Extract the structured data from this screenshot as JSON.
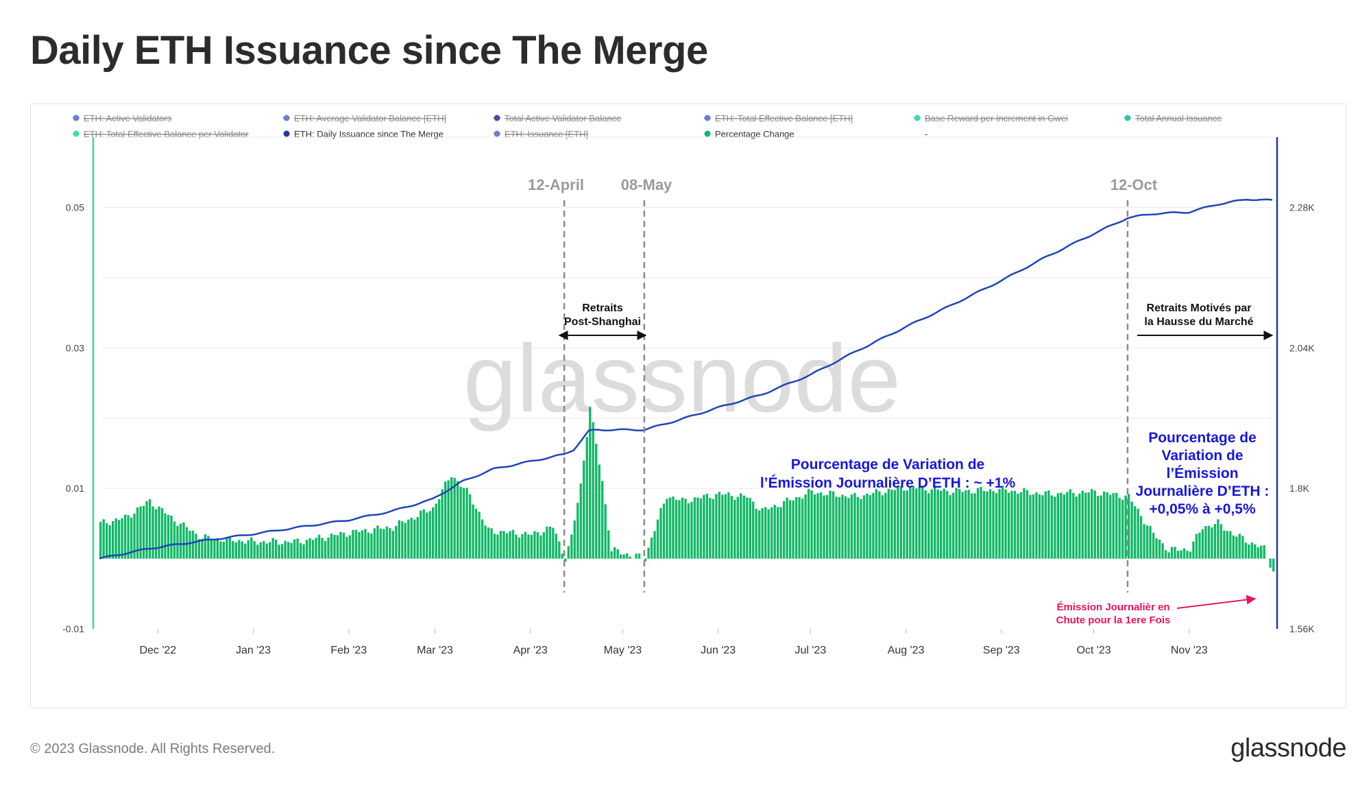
{
  "title": "Daily ETH Issuance since The Merge",
  "footer": {
    "copyright": "© 2023 Glassnode. All Rights Reserved.",
    "logo": "glassnode"
  },
  "watermark": "glassnode",
  "colors": {
    "issuance_line": "#1e45b8",
    "pct_bars": "#12b866",
    "left_axis": "#3cd4a8",
    "right_axis": "#1a3aa0",
    "vline": "#8a8a8a",
    "blue_text": "#1616e0",
    "pink_text": "#e8145a",
    "grid": "#e6e6e6"
  },
  "legend": [
    {
      "label": "ETH: Active Validators",
      "color": "#6a7fd8",
      "struck": true
    },
    {
      "label": "ETH: Average Validator Balance [ETH]",
      "color": "#6a7fd8",
      "struck": true
    },
    {
      "label": "Total Active Validator Balance",
      "color": "#4a4ab0",
      "struck": true
    },
    {
      "label": "ETH: Total Effective Balance [ETH]",
      "color": "#6a7fd8",
      "struck": true
    },
    {
      "label": "Base Reward per Increment in Gwei",
      "color": "#3ce0a8",
      "struck": true
    },
    {
      "label": "Total Annual Issuance",
      "color": "#36c0b0",
      "struck": true
    },
    {
      "label": "ETH: Total Effective Balance per Validator",
      "color": "#3ce0a8",
      "struck": true
    },
    {
      "label": "ETH: Daily Issuance since The Merge",
      "color": "#1e3aa0",
      "struck": false
    },
    {
      "label": "ETH: Issuance [ETH]",
      "color": "#6a7fd8",
      "struck": true
    },
    {
      "label": "Percentage Change",
      "color": "#12b866",
      "struck": false
    },
    {
      "label": "-",
      "color": "",
      "struck": false
    }
  ],
  "annotations": {
    "april": "12-April",
    "may": "08-May",
    "oct": "12-Oct",
    "shanghai": [
      "Retraits",
      "Post-Shanghai"
    ],
    "market": [
      "Retraits Motivés par",
      "la Hausse du Marché"
    ],
    "pct_main": [
      "Pourcentage de Variation de",
      "l’Émission Journalière D’ETH : ~ +1%"
    ],
    "pct_right": [
      "Pourcentage de",
      "Variation de",
      "l’Émission",
      "Journalière D’ETH :",
      "+0,05% à +0,5%"
    ],
    "fall": [
      "Émission Journalièr en",
      "Chute pour la 1ere Fois"
    ]
  },
  "chart_data": {
    "type": "line+bar",
    "title": "Daily ETH Issuance since The Merge",
    "x_ticks": [
      "Dec '22",
      "Jan '23",
      "Feb '23",
      "Mar '23",
      "Apr '23",
      "May '23",
      "Jun '23",
      "Jul '23",
      "Aug '23",
      "Sep '23",
      "Oct '23",
      "Nov '23"
    ],
    "x_range": [
      "2022-11-12",
      "2023-11-28"
    ],
    "left_axis": {
      "ticks": [
        "0.05",
        "0.03",
        "0.01",
        "-0.01"
      ],
      "range": [
        -0.01,
        0.06
      ]
    },
    "right_axis": {
      "ticks": [
        "2.28K",
        "2.04K",
        "1.8K",
        "1.56K"
      ],
      "range": [
        1560,
        2400
      ]
    },
    "vertical_markers": [
      "2023-04-12",
      "2023-05-08",
      "2023-10-12"
    ],
    "series": [
      {
        "name": "ETH: Daily Issuance since The Merge",
        "axis": "right",
        "kind": "line",
        "points": [
          [
            "2022-11-12",
            1680
          ],
          [
            "2022-11-28",
            1697
          ],
          [
            "2022-12-15",
            1710
          ],
          [
            "2023-01-01",
            1722
          ],
          [
            "2023-01-15",
            1733
          ],
          [
            "2023-02-01",
            1746
          ],
          [
            "2023-02-15",
            1761
          ],
          [
            "2023-02-28",
            1781
          ],
          [
            "2023-03-10",
            1812
          ],
          [
            "2023-03-20",
            1833
          ],
          [
            "2023-04-01",
            1846
          ],
          [
            "2023-04-10",
            1856
          ],
          [
            "2023-04-12",
            1858
          ],
          [
            "2023-04-15",
            1866
          ],
          [
            "2023-04-20",
            1898
          ],
          [
            "2023-04-23",
            1900
          ],
          [
            "2023-05-08",
            1900
          ],
          [
            "2023-05-20",
            1918
          ],
          [
            "2023-06-01",
            1938
          ],
          [
            "2023-06-15",
            1960
          ],
          [
            "2023-07-01",
            1994
          ],
          [
            "2023-07-15",
            2032
          ],
          [
            "2023-08-01",
            2076
          ],
          [
            "2023-08-15",
            2111
          ],
          [
            "2023-09-01",
            2155
          ],
          [
            "2023-09-15",
            2194
          ],
          [
            "2023-10-01",
            2235
          ],
          [
            "2023-10-12",
            2262
          ],
          [
            "2023-10-20",
            2269
          ],
          [
            "2023-11-01",
            2272
          ],
          [
            "2023-11-10",
            2285
          ],
          [
            "2023-11-20",
            2294
          ],
          [
            "2023-11-28",
            2292
          ]
        ]
      },
      {
        "name": "Percentage Change",
        "axis": "left",
        "kind": "bar",
        "points": [
          [
            "2022-11-12",
            0.005
          ],
          [
            "2022-11-20",
            0.0058
          ],
          [
            "2022-11-28",
            0.0082
          ],
          [
            "2022-12-06",
            0.0055
          ],
          [
            "2022-12-15",
            0.003
          ],
          [
            "2023-01-01",
            0.0024
          ],
          [
            "2023-01-15",
            0.0024
          ],
          [
            "2023-02-01",
            0.0037
          ],
          [
            "2023-02-15",
            0.0045
          ],
          [
            "2023-02-28",
            0.0072
          ],
          [
            "2023-03-06",
            0.012
          ],
          [
            "2023-03-12",
            0.009
          ],
          [
            "2023-03-18",
            0.004
          ],
          [
            "2023-04-01",
            0.0034
          ],
          [
            "2023-04-08",
            0.0045
          ],
          [
            "2023-04-12",
            0.0
          ],
          [
            "2023-04-14",
            0.003
          ],
          [
            "2023-04-17",
            0.0105
          ],
          [
            "2023-04-20",
            0.0215
          ],
          [
            "2023-04-24",
            0.011
          ],
          [
            "2023-04-27",
            0.0012
          ],
          [
            "2023-05-08",
            0.0
          ],
          [
            "2023-05-10",
            0.003
          ],
          [
            "2023-05-15",
            0.009
          ],
          [
            "2023-05-20",
            0.0082
          ],
          [
            "2023-06-01",
            0.0092
          ],
          [
            "2023-06-10",
            0.0088
          ],
          [
            "2023-06-15",
            0.0068
          ],
          [
            "2023-07-01",
            0.0095
          ],
          [
            "2023-07-15",
            0.0088
          ],
          [
            "2023-08-01",
            0.0102
          ],
          [
            "2023-08-15",
            0.0096
          ],
          [
            "2023-09-01",
            0.0098
          ],
          [
            "2023-09-15",
            0.0092
          ],
          [
            "2023-10-01",
            0.0095
          ],
          [
            "2023-10-12",
            0.0088
          ],
          [
            "2023-10-20",
            0.0035
          ],
          [
            "2023-10-25",
            0.0012
          ],
          [
            "2023-11-01",
            0.0014
          ],
          [
            "2023-11-05",
            0.0045
          ],
          [
            "2023-11-10",
            0.005
          ],
          [
            "2023-11-15",
            0.0035
          ],
          [
            "2023-11-20",
            0.0024
          ],
          [
            "2023-11-25",
            0.0014
          ],
          [
            "2023-11-28",
            -0.0018
          ]
        ]
      }
    ]
  }
}
